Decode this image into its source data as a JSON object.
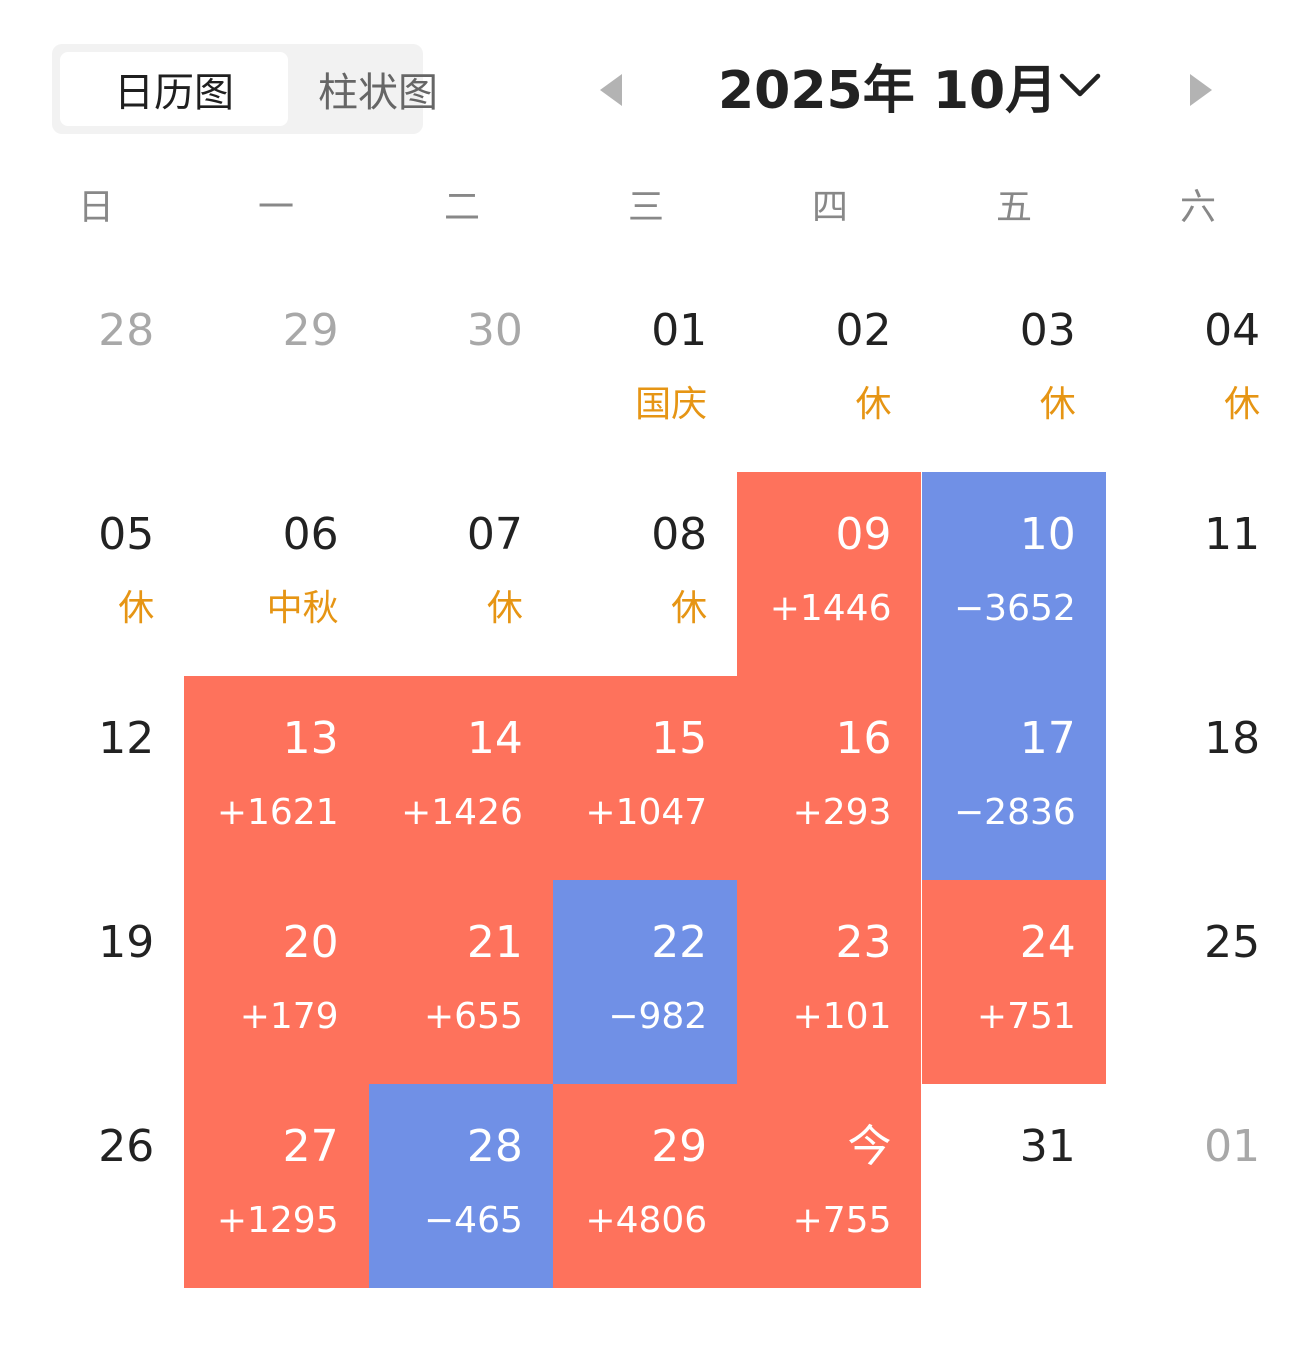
{
  "view_toggle": {
    "calendar_label": "日历图",
    "bar_label": "柱状图"
  },
  "header": {
    "title": "2025年 10月",
    "prev_icon": "triangle-left-icon",
    "next_icon": "triangle-right-icon",
    "dropdown_icon": "chevron-down-icon"
  },
  "weekdays": [
    "日",
    "一",
    "二",
    "三",
    "四",
    "五",
    "六"
  ],
  "colors": {
    "gain": "#fe725c",
    "loss": "#7090e6",
    "holiday_text": "#e69514",
    "other_month_text": "#a8a8a8"
  },
  "days": [
    {
      "day": "28",
      "sub": "",
      "type": "other"
    },
    {
      "day": "29",
      "sub": "",
      "type": "other"
    },
    {
      "day": "30",
      "sub": "",
      "type": "other"
    },
    {
      "day": "01",
      "sub": "国庆",
      "type": "holiday"
    },
    {
      "day": "02",
      "sub": "休",
      "type": "holiday"
    },
    {
      "day": "03",
      "sub": "休",
      "type": "holiday"
    },
    {
      "day": "04",
      "sub": "休",
      "type": "holiday"
    },
    {
      "day": "05",
      "sub": "休",
      "type": "holiday"
    },
    {
      "day": "06",
      "sub": "中秋",
      "type": "holiday"
    },
    {
      "day": "07",
      "sub": "休",
      "type": "holiday"
    },
    {
      "day": "08",
      "sub": "休",
      "type": "holiday"
    },
    {
      "day": "09",
      "sub": "+1446",
      "type": "gain"
    },
    {
      "day": "10",
      "sub": "−3652",
      "type": "loss"
    },
    {
      "day": "11",
      "sub": "",
      "type": "normal"
    },
    {
      "day": "12",
      "sub": "",
      "type": "normal"
    },
    {
      "day": "13",
      "sub": "+1621",
      "type": "gain"
    },
    {
      "day": "14",
      "sub": "+1426",
      "type": "gain"
    },
    {
      "day": "15",
      "sub": "+1047",
      "type": "gain"
    },
    {
      "day": "16",
      "sub": "+293",
      "type": "gain"
    },
    {
      "day": "17",
      "sub": "−2836",
      "type": "loss"
    },
    {
      "day": "18",
      "sub": "",
      "type": "normal"
    },
    {
      "day": "19",
      "sub": "",
      "type": "normal"
    },
    {
      "day": "20",
      "sub": "+179",
      "type": "gain"
    },
    {
      "day": "21",
      "sub": "+655",
      "type": "gain"
    },
    {
      "day": "22",
      "sub": "−982",
      "type": "loss"
    },
    {
      "day": "23",
      "sub": "+101",
      "type": "gain"
    },
    {
      "day": "24",
      "sub": "+751",
      "type": "gain"
    },
    {
      "day": "25",
      "sub": "",
      "type": "normal"
    },
    {
      "day": "26",
      "sub": "",
      "type": "normal"
    },
    {
      "day": "27",
      "sub": "+1295",
      "type": "gain"
    },
    {
      "day": "28",
      "sub": "−465",
      "type": "loss"
    },
    {
      "day": "29",
      "sub": "+4806",
      "type": "gain"
    },
    {
      "day": "今",
      "sub": "+755",
      "type": "gain"
    },
    {
      "day": "31",
      "sub": "",
      "type": "normal"
    },
    {
      "day": "01",
      "sub": "",
      "type": "other"
    }
  ]
}
